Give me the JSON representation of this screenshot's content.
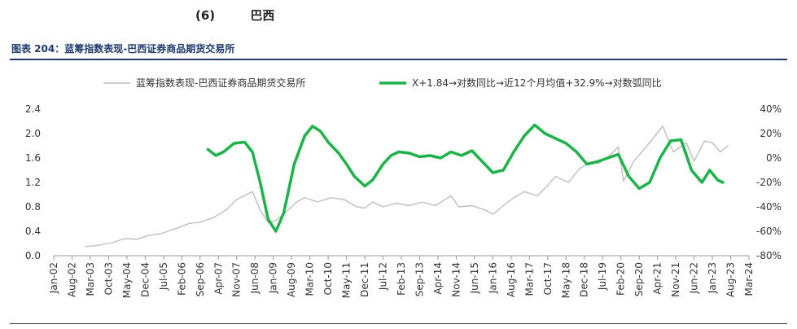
{
  "section": {
    "number": "(6)",
    "title": "巴西"
  },
  "figure": {
    "title": "图表 204：蓝筹指数表现-巴西证券商品期货交易所"
  },
  "chart_data": {
    "type": "line",
    "title": "",
    "legend_position": "top",
    "grid": false,
    "left_axis": {
      "min": 0.0,
      "max": 2.4,
      "ticks": [
        "0.0",
        "0.4",
        "0.8",
        "1.2",
        "1.6",
        "2.0",
        "2.4"
      ]
    },
    "right_axis": {
      "min": -80,
      "max": 40,
      "ticks": [
        "-80%",
        "-60%",
        "-40%",
        "-20%",
        "0%",
        "20%",
        "40%"
      ]
    },
    "x_ticks": [
      "Jan-02",
      "Aug-02",
      "Mar-03",
      "Oct-03",
      "May-04",
      "Dec-04",
      "Jul-05",
      "Feb-06",
      "Sep-06",
      "Apr-07",
      "Nov-07",
      "Jun-08",
      "Jan-09",
      "Aug-09",
      "Mar-10",
      "Oct-10",
      "May-11",
      "Dec-11",
      "Jul-12",
      "Feb-13",
      "Sep-13",
      "Apr-14",
      "Nov-14",
      "Jun-15",
      "Jan-16",
      "Aug-16",
      "Mar-17",
      "Oct-17",
      "May-18",
      "Dec-18",
      "Jul-19",
      "Feb-20",
      "Sep-20",
      "Apr-21",
      "Nov-21",
      "Jun-22",
      "Jan-23",
      "Aug-23",
      "Mar-24"
    ],
    "series": [
      {
        "name": "蓝筹指数表现-巴西证券商品期货交易所",
        "axis": "left",
        "color": "#bfbfbf",
        "points": [
          [
            "2003-01",
            0.15
          ],
          [
            "2003-06",
            0.17
          ],
          [
            "2003-12",
            0.22
          ],
          [
            "2004-04",
            0.28
          ],
          [
            "2004-09",
            0.27
          ],
          [
            "2005-01",
            0.33
          ],
          [
            "2005-06",
            0.36
          ],
          [
            "2005-12",
            0.45
          ],
          [
            "2006-05",
            0.53
          ],
          [
            "2006-09",
            0.55
          ],
          [
            "2007-02",
            0.62
          ],
          [
            "2007-07",
            0.75
          ],
          [
            "2007-11",
            0.92
          ],
          [
            "2008-05",
            1.05
          ],
          [
            "2008-08",
            0.75
          ],
          [
            "2008-11",
            0.54
          ],
          [
            "2009-02",
            0.58
          ],
          [
            "2009-06",
            0.72
          ],
          [
            "2009-10",
            0.88
          ],
          [
            "2010-01",
            0.95
          ],
          [
            "2010-06",
            0.88
          ],
          [
            "2010-11",
            0.95
          ],
          [
            "2011-04",
            0.92
          ],
          [
            "2011-09",
            0.8
          ],
          [
            "2011-12",
            0.78
          ],
          [
            "2012-03",
            0.88
          ],
          [
            "2012-07",
            0.8
          ],
          [
            "2012-12",
            0.86
          ],
          [
            "2013-05",
            0.82
          ],
          [
            "2013-10",
            0.88
          ],
          [
            "2014-03",
            0.82
          ],
          [
            "2014-09",
            0.98
          ],
          [
            "2014-12",
            0.8
          ],
          [
            "2015-05",
            0.82
          ],
          [
            "2015-10",
            0.75
          ],
          [
            "2016-01",
            0.68
          ],
          [
            "2016-05",
            0.82
          ],
          [
            "2016-09",
            0.95
          ],
          [
            "2017-01",
            1.05
          ],
          [
            "2017-06",
            0.98
          ],
          [
            "2017-10",
            1.15
          ],
          [
            "2018-01",
            1.3
          ],
          [
            "2018-06",
            1.2
          ],
          [
            "2018-10",
            1.42
          ],
          [
            "2019-01",
            1.5
          ],
          [
            "2019-06",
            1.52
          ],
          [
            "2019-10",
            1.65
          ],
          [
            "2020-01",
            1.78
          ],
          [
            "2020-03",
            1.22
          ],
          [
            "2020-07",
            1.55
          ],
          [
            "2020-12",
            1.8
          ],
          [
            "2021-06",
            2.12
          ],
          [
            "2021-10",
            1.7
          ],
          [
            "2022-03",
            1.85
          ],
          [
            "2022-06",
            1.55
          ],
          [
            "2022-10",
            1.88
          ],
          [
            "2023-01",
            1.85
          ],
          [
            "2023-04",
            1.7
          ],
          [
            "2023-07",
            1.8
          ]
        ]
      },
      {
        "name": "X+1.84→对数同比→近12个月均值+32.9%→对数弧同比",
        "axis": "right",
        "color": "#1db34a",
        "points": [
          [
            "2006-12",
            7
          ],
          [
            "2007-03",
            2
          ],
          [
            "2007-06",
            5
          ],
          [
            "2007-10",
            12
          ],
          [
            "2008-02",
            13
          ],
          [
            "2008-05",
            5
          ],
          [
            "2008-08",
            -20
          ],
          [
            "2008-11",
            -50
          ],
          [
            "2009-02",
            -60
          ],
          [
            "2009-05",
            -45
          ],
          [
            "2009-09",
            -5
          ],
          [
            "2010-01",
            18
          ],
          [
            "2010-04",
            26
          ],
          [
            "2010-07",
            22
          ],
          [
            "2010-10",
            13
          ],
          [
            "2011-02",
            4
          ],
          [
            "2011-05",
            -5
          ],
          [
            "2011-08",
            -15
          ],
          [
            "2011-12",
            -23
          ],
          [
            "2012-03",
            -18
          ],
          [
            "2012-07",
            -5
          ],
          [
            "2012-10",
            2
          ],
          [
            "2013-01",
            5
          ],
          [
            "2013-05",
            4
          ],
          [
            "2013-09",
            1
          ],
          [
            "2014-01",
            2
          ],
          [
            "2014-05",
            0
          ],
          [
            "2014-09",
            5
          ],
          [
            "2015-01",
            2
          ],
          [
            "2015-05",
            6
          ],
          [
            "2015-09",
            -3
          ],
          [
            "2016-01",
            -12
          ],
          [
            "2016-05",
            -10
          ],
          [
            "2016-09",
            5
          ],
          [
            "2017-01",
            18
          ],
          [
            "2017-05",
            27
          ],
          [
            "2017-09",
            20
          ],
          [
            "2018-01",
            16
          ],
          [
            "2018-05",
            12
          ],
          [
            "2018-09",
            5
          ],
          [
            "2019-01",
            -5
          ],
          [
            "2019-05",
            -3
          ],
          [
            "2019-09",
            0
          ],
          [
            "2020-01",
            3
          ],
          [
            "2020-05",
            -15
          ],
          [
            "2020-09",
            -25
          ],
          [
            "2021-01",
            -20
          ],
          [
            "2021-05",
            0
          ],
          [
            "2021-09",
            14
          ],
          [
            "2022-01",
            15
          ],
          [
            "2022-05",
            -10
          ],
          [
            "2022-09",
            -20
          ],
          [
            "2022-12",
            -10
          ],
          [
            "2023-03",
            -18
          ],
          [
            "2023-05",
            -20
          ]
        ]
      }
    ]
  }
}
